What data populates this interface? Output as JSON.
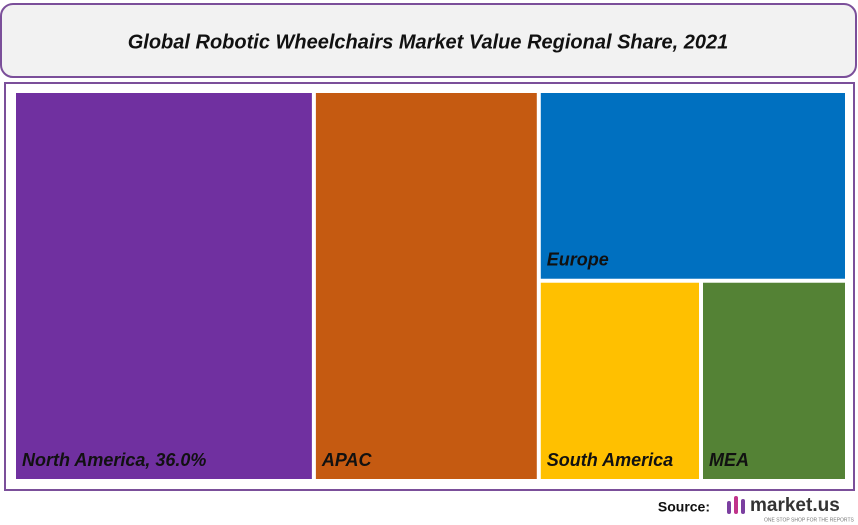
{
  "chart_data": {
    "type": "treemap",
    "title": "Global Robotic Wheelchairs Market Value Regional Share, 2021",
    "categories": [
      "North America, 36.0%",
      "APAC",
      "Europe",
      "South America",
      "MEA"
    ],
    "values": [
      36.0,
      27.0,
      18.0,
      10.0,
      9.0
    ],
    "colors": [
      "#7030a0",
      "#c55a11",
      "#0070c0",
      "#ffc000",
      "#548235"
    ]
  },
  "footer": {
    "source_label": "Source:",
    "brand": "market.us",
    "tagline": "ONE STOP SHOP FOR THE REPORTS"
  }
}
